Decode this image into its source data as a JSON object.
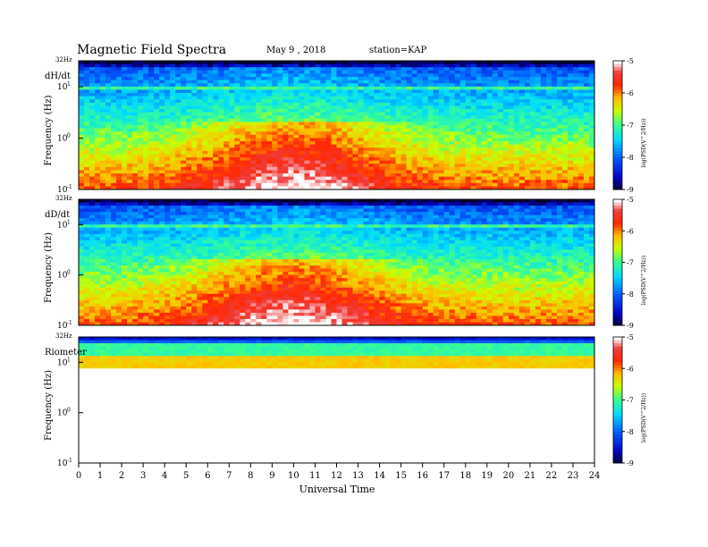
{
  "header": {
    "title": "Magnetic  Field  Spectra",
    "date": "May 9  , 2018",
    "station": "station=KAP"
  },
  "chart_data": {
    "type": "heatmap",
    "x_label": "Universal Time",
    "x_ticks": [
      "0",
      "1",
      "2",
      "3",
      "4",
      "5",
      "6",
      "7",
      "8",
      "9",
      "10",
      "11",
      "12",
      "13",
      "14",
      "15",
      "16",
      "17",
      "18",
      "19",
      "20",
      "21",
      "22",
      "23",
      "24"
    ],
    "x_range_hours": [
      0,
      24
    ],
    "y_scale": "log",
    "y_top_label": "32Hz",
    "y_range_hz": [
      0.1,
      32
    ],
    "panels": [
      {
        "name": "dH/dt",
        "ylabel": "Frequency  (Hz)",
        "colorbar_label": "log(PSD(V^2/Hz))",
        "colorbar_ticks": [
          "-5",
          "-6",
          "-7",
          "-8",
          "-9"
        ],
        "colorbar_range": [
          -9,
          -5
        ]
      },
      {
        "name": "dD/dt",
        "ylabel": "Frequency  (Hz)",
        "colorbar_label": "log(PSD(V^2/Hz))",
        "colorbar_ticks": [
          "-5",
          "-6",
          "-7",
          "-8",
          "-9"
        ],
        "colorbar_range": [
          -9,
          -5
        ]
      },
      {
        "name": "Riometer",
        "ylabel": "Frequency  (Hz)",
        "colorbar_label": "log(PSD(V^2/Hz))",
        "colorbar_ticks": [
          "-5",
          "-6",
          "-7",
          "-8",
          "-9"
        ],
        "colorbar_range": [
          -9,
          -5
        ]
      }
    ],
    "y_tick_labels": {
      "top": "32Hz",
      "e1": "10",
      "e0": "10",
      "em1": "10",
      "sup1": "1",
      "sup0": "0",
      "supm1": "-1"
    }
  }
}
